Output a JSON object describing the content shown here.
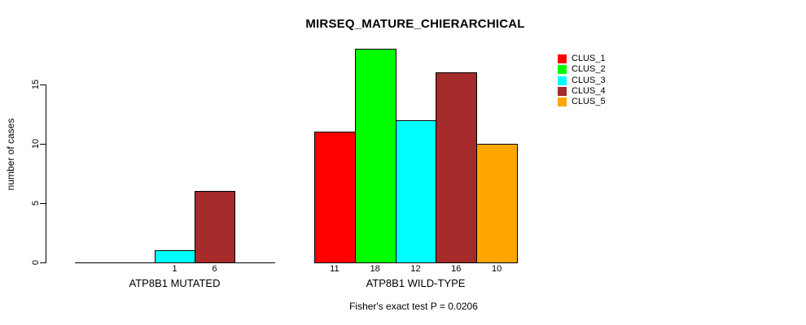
{
  "figure": {
    "title": "MIRSEQ_MATURE_CHIERARCHICAL",
    "ylabel": "number of cases",
    "caption": "Fisher's exact test P = 0.0206"
  },
  "chart_data": {
    "type": "bar",
    "title": "MIRSEQ_MATURE_CHIERARCHICAL",
    "xlabel": "",
    "ylabel": "number of cases",
    "ylim": [
      0,
      18.5
    ],
    "yticks": [
      0,
      5,
      10,
      15
    ],
    "grid": false,
    "legend_position": "top-right",
    "categories": [
      "ATP8B1 MUTATED",
      "ATP8B1 WILD-TYPE"
    ],
    "series": [
      {
        "name": "CLUS_1",
        "color": "#FF0000",
        "values": [
          0,
          11
        ]
      },
      {
        "name": "CLUS_2",
        "color": "#00FF00",
        "values": [
          0,
          18
        ]
      },
      {
        "name": "CLUS_3",
        "color": "#00FFFF",
        "values": [
          1,
          12
        ]
      },
      {
        "name": "CLUS_4",
        "color": "#A52A2A",
        "values": [
          6,
          16
        ]
      },
      {
        "name": "CLUS_5",
        "color": "#FFA500",
        "values": [
          0,
          10
        ]
      }
    ],
    "bar_value_labels": {
      "ATP8B1 MUTATED": [
        "",
        "",
        "1",
        "6",
        ""
      ],
      "ATP8B1 WILD-TYPE": [
        "11",
        "18",
        "12",
        "16",
        "10"
      ]
    },
    "annotation": "Fisher's exact test P = 0.0206"
  }
}
